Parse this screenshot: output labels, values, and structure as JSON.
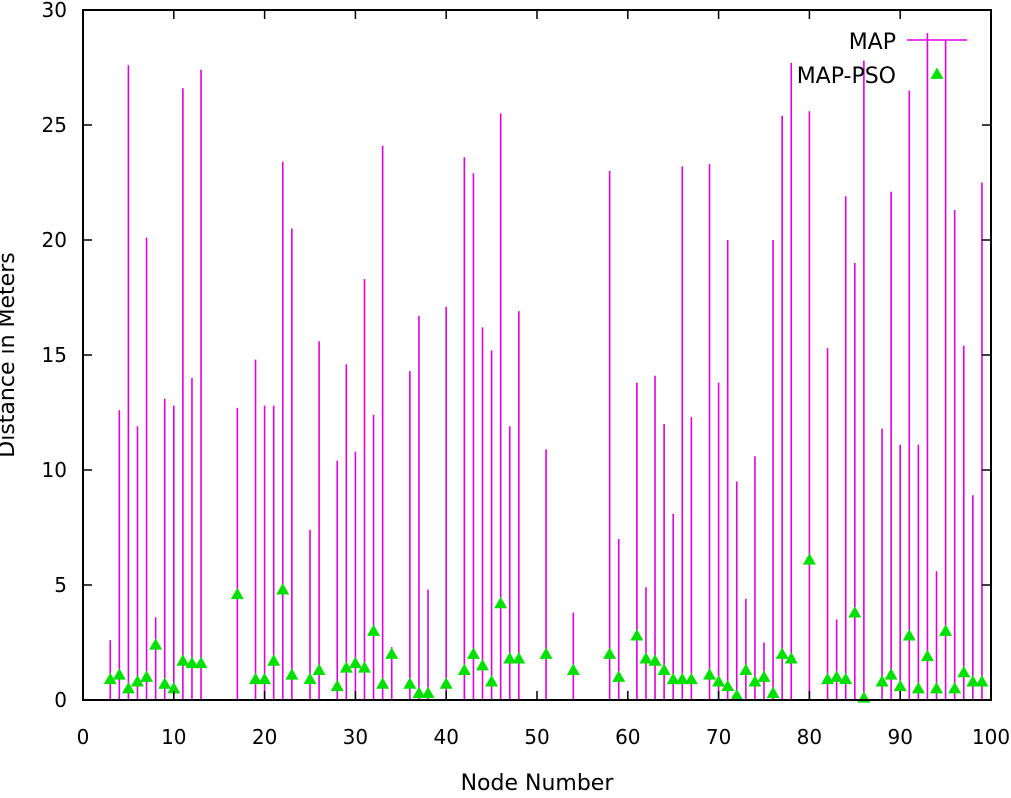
{
  "chart_data": {
    "type": "scatter",
    "xlabel": "Node Number",
    "ylabel": "Distance in Meters",
    "xlim": [
      0,
      100
    ],
    "ylim": [
      0,
      30
    ],
    "x_ticks": [
      "0",
      "10",
      "20",
      "30",
      "40",
      "50",
      "60",
      "70",
      "80",
      "90",
      "100"
    ],
    "y_ticks": [
      "0",
      "5",
      "10",
      "15",
      "20",
      "25",
      "30"
    ],
    "grid": false,
    "legend_position": "top-right",
    "series": [
      {
        "name": "MAP",
        "style": "impulses",
        "color": "#e000e0",
        "points": [
          [
            3,
            2.6
          ],
          [
            4,
            12.6
          ],
          [
            5,
            27.6
          ],
          [
            6,
            11.9
          ],
          [
            7,
            20.1
          ],
          [
            8,
            3.6
          ],
          [
            9,
            13.1
          ],
          [
            10,
            12.8
          ],
          [
            11,
            26.6
          ],
          [
            12,
            14.0
          ],
          [
            13,
            27.4
          ],
          [
            17,
            12.7
          ],
          [
            19,
            14.8
          ],
          [
            20,
            12.8
          ],
          [
            21,
            12.8
          ],
          [
            22,
            23.4
          ],
          [
            23,
            20.5
          ],
          [
            25,
            7.4
          ],
          [
            26,
            15.6
          ],
          [
            28,
            10.4
          ],
          [
            29,
            14.6
          ],
          [
            30,
            10.8
          ],
          [
            31,
            18.3
          ],
          [
            32,
            12.4
          ],
          [
            33,
            24.1
          ],
          [
            34,
            2.3
          ],
          [
            36,
            14.3
          ],
          [
            37,
            16.7
          ],
          [
            38,
            4.8
          ],
          [
            40,
            17.1
          ],
          [
            42,
            23.6
          ],
          [
            43,
            22.9
          ],
          [
            44,
            16.2
          ],
          [
            45,
            15.2
          ],
          [
            46,
            25.5
          ],
          [
            47,
            11.9
          ],
          [
            48,
            16.9
          ],
          [
            51,
            10.9
          ],
          [
            54,
            3.8
          ],
          [
            58,
            23.0
          ],
          [
            59,
            7.0
          ],
          [
            61,
            13.8
          ],
          [
            62,
            4.9
          ],
          [
            63,
            14.1
          ],
          [
            64,
            12.0
          ],
          [
            65,
            8.1
          ],
          [
            66,
            23.2
          ],
          [
            67,
            12.3
          ],
          [
            69,
            23.3
          ],
          [
            70,
            13.8
          ],
          [
            71,
            20.0
          ],
          [
            72,
            9.5
          ],
          [
            73,
            4.4
          ],
          [
            74,
            10.6
          ],
          [
            75,
            2.5
          ],
          [
            76,
            20.0
          ],
          [
            77,
            25.4
          ],
          [
            78,
            27.7
          ],
          [
            80,
            25.6
          ],
          [
            82,
            15.3
          ],
          [
            83,
            3.5
          ],
          [
            84,
            21.9
          ],
          [
            85,
            19.0
          ],
          [
            86,
            27.8
          ],
          [
            88,
            11.8
          ],
          [
            89,
            22.1
          ],
          [
            90,
            11.1
          ],
          [
            91,
            26.5
          ],
          [
            92,
            11.1
          ],
          [
            93,
            29.0
          ],
          [
            94,
            5.6
          ],
          [
            95,
            28.7
          ],
          [
            96,
            21.3
          ],
          [
            97,
            15.4
          ],
          [
            98,
            8.9
          ],
          [
            99,
            22.5
          ]
        ]
      },
      {
        "name": "MAP-PSO",
        "style": "points",
        "marker": "triangle",
        "color": "#00e000",
        "points": [
          [
            3,
            0.9
          ],
          [
            4,
            1.1
          ],
          [
            5,
            0.5
          ],
          [
            6,
            0.8
          ],
          [
            7,
            1.0
          ],
          [
            8,
            2.4
          ],
          [
            9,
            0.7
          ],
          [
            10,
            0.5
          ],
          [
            11,
            1.7
          ],
          [
            12,
            1.6
          ],
          [
            13,
            1.6
          ],
          [
            17,
            4.6
          ],
          [
            19,
            0.9
          ],
          [
            20,
            0.9
          ],
          [
            21,
            1.7
          ],
          [
            22,
            4.8
          ],
          [
            23,
            1.1
          ],
          [
            25,
            0.9
          ],
          [
            26,
            1.3
          ],
          [
            28,
            0.6
          ],
          [
            29,
            1.4
          ],
          [
            30,
            1.6
          ],
          [
            31,
            1.4
          ],
          [
            32,
            3.0
          ],
          [
            33,
            0.7
          ],
          [
            34,
            2.0
          ],
          [
            36,
            0.7
          ],
          [
            37,
            0.3
          ],
          [
            38,
            0.3
          ],
          [
            40,
            0.7
          ],
          [
            42,
            1.3
          ],
          [
            43,
            2.0
          ],
          [
            44,
            1.5
          ],
          [
            45,
            0.8
          ],
          [
            46,
            4.2
          ],
          [
            47,
            1.8
          ],
          [
            48,
            1.8
          ],
          [
            51,
            2.0
          ],
          [
            54,
            1.3
          ],
          [
            58,
            2.0
          ],
          [
            59,
            1.0
          ],
          [
            61,
            2.8
          ],
          [
            62,
            1.8
          ],
          [
            63,
            1.7
          ],
          [
            64,
            1.3
          ],
          [
            65,
            0.9
          ],
          [
            66,
            0.9
          ],
          [
            67,
            0.9
          ],
          [
            69,
            1.1
          ],
          [
            70,
            0.8
          ],
          [
            71,
            0.6
          ],
          [
            72,
            0.2
          ],
          [
            73,
            1.3
          ],
          [
            74,
            0.8
          ],
          [
            75,
            1.0
          ],
          [
            76,
            0.3
          ],
          [
            77,
            2.0
          ],
          [
            78,
            1.8
          ],
          [
            80,
            6.1
          ],
          [
            82,
            0.9
          ],
          [
            83,
            1.0
          ],
          [
            84,
            0.9
          ],
          [
            85,
            3.8
          ],
          [
            86,
            0.1
          ],
          [
            88,
            0.8
          ],
          [
            89,
            1.1
          ],
          [
            90,
            0.6
          ],
          [
            91,
            2.8
          ],
          [
            92,
            0.5
          ],
          [
            93,
            1.9
          ],
          [
            94,
            0.5
          ],
          [
            95,
            3.0
          ],
          [
            96,
            0.5
          ],
          [
            97,
            1.2
          ],
          [
            98,
            0.8
          ],
          [
            99,
            0.8
          ]
        ]
      }
    ]
  }
}
